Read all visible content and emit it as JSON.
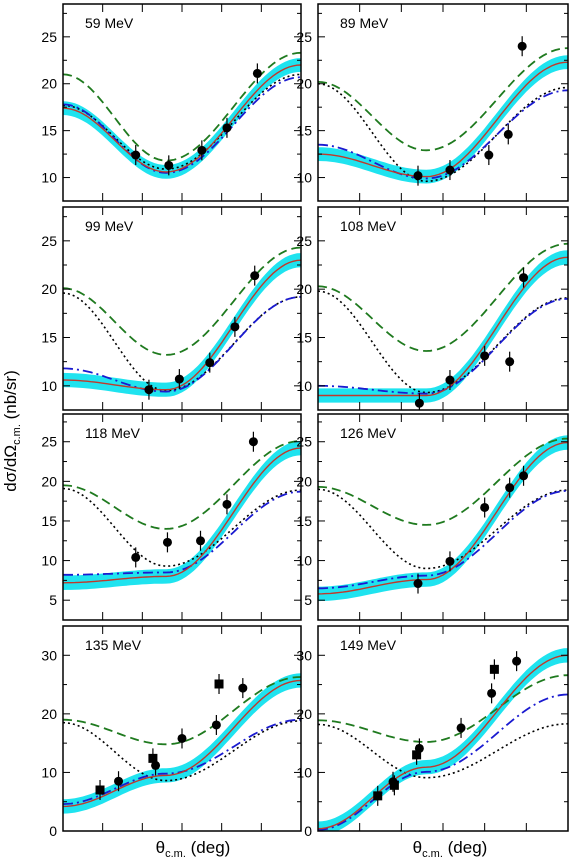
{
  "figure": {
    "ylabel_main": "dσ/dΩ",
    "ylabel_sub": "c.m.",
    "ylabel_unit": " (nb/sr)",
    "xlabel_main": "θ",
    "xlabel_sub": "c.m.",
    "xlabel_unit": " (deg)"
  },
  "chart_data": [
    {
      "type": "line",
      "title": "59 MeV",
      "ylim": [
        7.5,
        28.5
      ],
      "yticks": [
        10,
        15,
        20,
        25
      ],
      "xlim": [
        0,
        180
      ],
      "markers": {
        "circle": [
          [
            55,
            12.4
          ],
          [
            80,
            11.3
          ],
          [
            105,
            12.9
          ],
          [
            124,
            15.3
          ],
          [
            147,
            21.1
          ]
        ],
        "square": []
      },
      "curves": {
        "band_center": [
          17.4,
          10.6,
          22.0
        ],
        "red_solid": [
          17.4,
          10.6,
          22.0
        ],
        "green_dashed": [
          21.0,
          11.8,
          23.3
        ],
        "black_dotted": [
          17.7,
          10.9,
          21.0
        ],
        "blue_dashdot": [
          17.8,
          10.5,
          20.7
        ]
      }
    },
    {
      "type": "line",
      "title": "89 MeV",
      "ylim": [
        7.5,
        28.5
      ],
      "yticks": [
        10,
        15,
        20,
        25
      ],
      "xlim": [
        0,
        180
      ],
      "markers": {
        "circle": [
          [
            72,
            10.2
          ],
          [
            95,
            10.8
          ],
          [
            123,
            12.4
          ],
          [
            137,
            14.6
          ],
          [
            147,
            24.0
          ]
        ],
        "square": []
      },
      "curves": {
        "band_center": [
          12.5,
          10.1,
          22.3
        ],
        "red_solid": [
          12.5,
          10.1,
          22.3
        ],
        "green_dashed": [
          20.2,
          12.9,
          23.8
        ],
        "black_dotted": [
          20.0,
          9.6,
          19.6
        ],
        "blue_dashdot": [
          13.5,
          9.9,
          19.3
        ]
      }
    },
    {
      "type": "line",
      "title": "99 MeV",
      "ylim": [
        7.5,
        28.5
      ],
      "yticks": [
        10,
        15,
        20,
        25
      ],
      "xlim": [
        0,
        180
      ],
      "markers": {
        "circle": [
          [
            65,
            9.6
          ],
          [
            88,
            10.7
          ],
          [
            111,
            12.4
          ],
          [
            130,
            16.1
          ],
          [
            145,
            21.4
          ]
        ],
        "square": []
      },
      "curves": {
        "band_center": [
          10.6,
          9.6,
          23.0
        ],
        "red_solid": [
          10.6,
          9.6,
          23.0
        ],
        "green_dashed": [
          20.1,
          13.2,
          24.3
        ],
        "black_dotted": [
          19.6,
          9.5,
          19.2
        ],
        "blue_dashdot": [
          11.8,
          9.4,
          19.2
        ]
      }
    },
    {
      "type": "line",
      "title": "108 MeV",
      "ylim": [
        7.5,
        28.5
      ],
      "yticks": [
        10,
        15,
        20,
        25
      ],
      "xlim": [
        0,
        180
      ],
      "markers": {
        "circle": [
          [
            73,
            8.2
          ],
          [
            95,
            10.6
          ],
          [
            120,
            13.1
          ],
          [
            138,
            12.5
          ],
          [
            148,
            21.2
          ]
        ],
        "square": []
      },
      "curves": {
        "band_center": [
          9.0,
          9.0,
          23.3
        ],
        "red_solid": [
          9.0,
          9.0,
          23.3
        ],
        "green_dashed": [
          20.3,
          13.6,
          24.7
        ],
        "black_dotted": [
          19.8,
          9.3,
          19.1
        ],
        "blue_dashdot": [
          10.0,
          9.2,
          19.0
        ]
      }
    },
    {
      "type": "line",
      "title": "118 MeV",
      "ylim": [
        2.5,
        28.5
      ],
      "yticks": [
        5,
        10,
        15,
        20,
        25
      ],
      "xlim": [
        0,
        180
      ],
      "markers": {
        "circle": [
          [
            55,
            10.4
          ],
          [
            79,
            12.3
          ],
          [
            104,
            12.5
          ],
          [
            124,
            17.1
          ],
          [
            144,
            25.0
          ]
        ],
        "square": []
      },
      "curves": {
        "band_center": [
          7.2,
          8.0,
          24.2
        ],
        "red_solid": [
          7.2,
          8.0,
          24.2
        ],
        "green_dashed": [
          19.5,
          14.0,
          25.1
        ],
        "black_dotted": [
          19.1,
          9.3,
          18.9
        ],
        "blue_dashdot": [
          8.2,
          8.5,
          18.7
        ]
      }
    },
    {
      "type": "line",
      "title": "126 MeV",
      "ylim": [
        2.5,
        28.5
      ],
      "yticks": [
        5,
        10,
        15,
        20,
        25
      ],
      "xlim": [
        0,
        180
      ],
      "markers": {
        "circle": [
          [
            72,
            7.1
          ],
          [
            95,
            9.9
          ],
          [
            120,
            16.7
          ],
          [
            138,
            19.2
          ],
          [
            148,
            20.7
          ]
        ],
        "square": []
      },
      "curves": {
        "band_center": [
          5.8,
          7.6,
          24.9
        ],
        "red_solid": [
          5.8,
          7.6,
          24.9
        ],
        "green_dashed": [
          19.3,
          14.5,
          25.4
        ],
        "black_dotted": [
          19.0,
          9.0,
          18.9
        ],
        "blue_dashdot": [
          6.5,
          8.1,
          18.8
        ]
      }
    },
    {
      "type": "line",
      "title": "135 MeV",
      "ylim": [
        0,
        35
      ],
      "yticks": [
        0,
        10,
        20,
        30
      ],
      "xlim": [
        0,
        180
      ],
      "markers": {
        "circle": [
          [
            42,
            8.5
          ],
          [
            70,
            11.2
          ],
          [
            90,
            15.8
          ],
          [
            116,
            18.1
          ],
          [
            136,
            24.4
          ]
        ],
        "square": [
          [
            28,
            7.0
          ],
          [
            68,
            12.4
          ],
          [
            118,
            25.1
          ]
        ]
      },
      "curves": {
        "band_center": [
          4.2,
          9.5,
          25.7
        ],
        "red_solid": [
          4.2,
          9.5,
          25.7
        ],
        "green_dashed": [
          19.0,
          14.8,
          26.3
        ],
        "black_dotted": [
          18.5,
          8.6,
          18.8
        ],
        "blue_dashdot": [
          4.6,
          9.8,
          19.0
        ]
      }
    },
    {
      "type": "line",
      "title": "149 MeV",
      "ylim": [
        0,
        35
      ],
      "yticks": [
        0,
        10,
        20,
        30
      ],
      "xlim": [
        0,
        180
      ],
      "markers": {
        "circle": [
          [
            54,
            8.4
          ],
          [
            73,
            14.1
          ],
          [
            103,
            17.6
          ],
          [
            143,
            29.0
          ],
          [
            125,
            23.5
          ]
        ],
        "square": [
          [
            43,
            6.0
          ],
          [
            55,
            7.8
          ],
          [
            71,
            13.0
          ],
          [
            127,
            27.6
          ]
        ]
      },
      "curves": {
        "band_center": [
          0.4,
          10.9,
          30.0
        ],
        "red_solid": [
          0.4,
          10.9,
          30.0
        ],
        "green_dashed": [
          18.9,
          15.2,
          26.6
        ],
        "black_dotted": [
          18.2,
          9.1,
          18.3
        ],
        "blue_dashdot": [
          0.2,
          10.1,
          23.3
        ]
      }
    }
  ],
  "colors": {
    "band": "#1fe3ef",
    "red_solid": "#c0392b",
    "green_dashed": "#1f7a1f",
    "black_dotted": "#000000",
    "blue_dashdot": "#1a1ad0",
    "markers": "#000000"
  }
}
